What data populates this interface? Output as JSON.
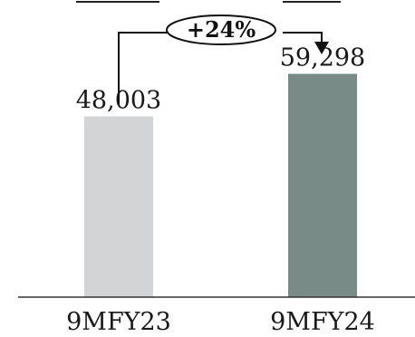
{
  "chart_data": {
    "type": "bar",
    "categories": [
      "9MFY23",
      "9MFY24"
    ],
    "values": [
      48003,
      59298
    ],
    "value_labels": [
      "48,003",
      "59,298"
    ],
    "colors": [
      "#d3d4d6",
      "#788b86"
    ],
    "annotation": "+24%",
    "ylim": [
      0,
      70000
    ]
  }
}
